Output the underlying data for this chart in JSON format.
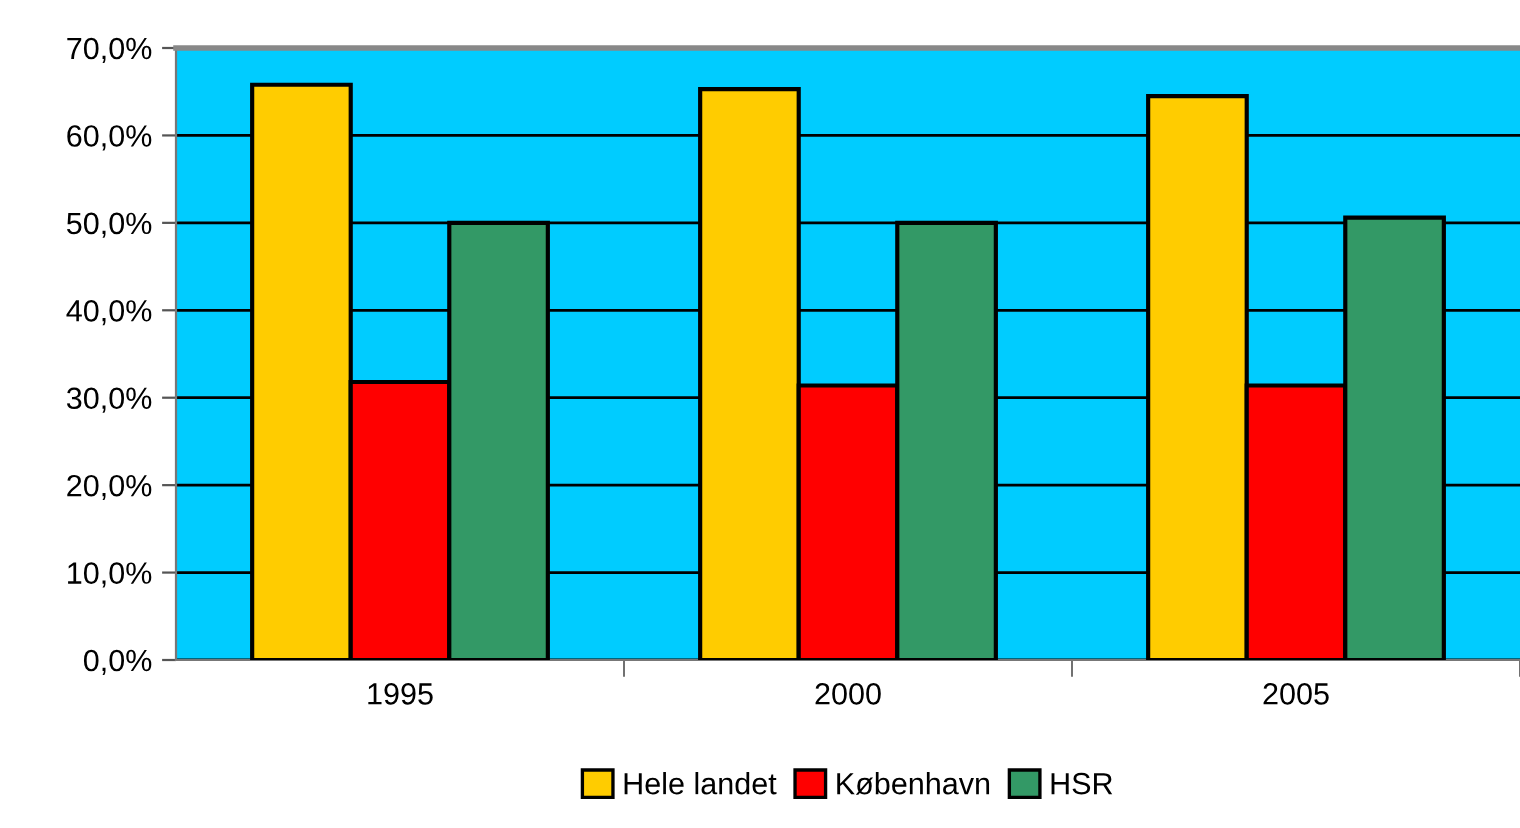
{
  "chart_data": {
    "type": "bar",
    "categories": [
      "1995",
      "2000",
      "2005"
    ],
    "series": [
      {
        "name": "Hele landet",
        "color": "#ffcc00",
        "values": [
          65.8,
          65.3,
          64.5
        ]
      },
      {
        "name": "København",
        "color": "#ff0000",
        "values": [
          31.8,
          31.4,
          31.4
        ]
      },
      {
        "name": "HSR",
        "color": "#339966",
        "values": [
          50.0,
          50.0,
          50.6
        ]
      }
    ],
    "ylim": [
      0,
      70
    ],
    "yticks": [
      {
        "value": 0,
        "label": "0,0%"
      },
      {
        "value": 10,
        "label": "10,0%"
      },
      {
        "value": 20,
        "label": "20,0%"
      },
      {
        "value": 30,
        "label": "30,0%"
      },
      {
        "value": 40,
        "label": "40,0%"
      },
      {
        "value": 50,
        "label": "50,0%"
      },
      {
        "value": 60,
        "label": "60,0%"
      },
      {
        "value": 70,
        "label": "70,0%"
      }
    ],
    "grid": "y",
    "legend": "bottom"
  }
}
